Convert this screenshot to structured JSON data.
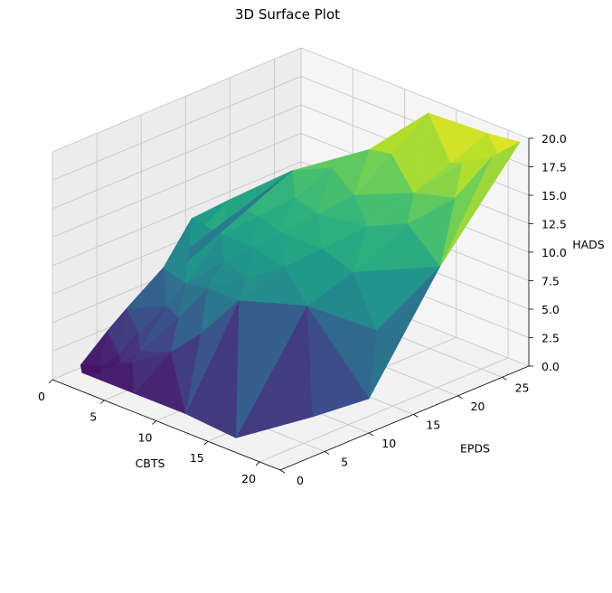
{
  "chart_data": {
    "type": "surface3d",
    "title": "3D Surface Plot",
    "xlabel": "CBTS",
    "ylabel": "EPDS",
    "zlabel": "HADS",
    "xlim": [
      0,
      22
    ],
    "ylim": [
      0,
      28
    ],
    "zlim": [
      0,
      20
    ],
    "x_ticks": [
      "0",
      "5",
      "10",
      "15",
      "20"
    ],
    "y_ticks": [
      "0",
      "5",
      "10",
      "15",
      "20",
      "25"
    ],
    "z_ticks": [
      "0.0",
      "2.5",
      "5.0",
      "7.5",
      "10.0",
      "12.5",
      "15.0",
      "17.5",
      "20.0"
    ],
    "colormap": "viridis",
    "grid": true,
    "points": [
      {
        "x": 1,
        "y": 2,
        "z": 1
      },
      {
        "x": 2,
        "y": 1,
        "z": 1
      },
      {
        "x": 3,
        "y": 2,
        "z": 1
      },
      {
        "x": 2,
        "y": 3,
        "z": 1
      },
      {
        "x": 4,
        "y": 3,
        "z": 2
      },
      {
        "x": 3,
        "y": 4,
        "z": 2
      },
      {
        "x": 1,
        "y": 5,
        "z": 3
      },
      {
        "x": 2,
        "y": 6,
        "z": 5
      },
      {
        "x": 4,
        "y": 5,
        "z": 4
      },
      {
        "x": 5,
        "y": 4,
        "z": 3
      },
      {
        "x": 6,
        "y": 2,
        "z": 3
      },
      {
        "x": 7,
        "y": 1,
        "z": 1
      },
      {
        "x": 8,
        "y": 4,
        "z": 4
      },
      {
        "x": 5,
        "y": 7,
        "z": 6
      },
      {
        "x": 3,
        "y": 9,
        "z": 8
      },
      {
        "x": 6,
        "y": 8,
        "z": 8
      },
      {
        "x": 4,
        "y": 11,
        "z": 12
      },
      {
        "x": 7,
        "y": 6,
        "z": 6
      },
      {
        "x": 9,
        "y": 7,
        "z": 9
      },
      {
        "x": 8,
        "y": 10,
        "z": 10
      },
      {
        "x": 6,
        "y": 12,
        "z": 11
      },
      {
        "x": 5,
        "y": 14,
        "z": 13
      },
      {
        "x": 10,
        "y": 5,
        "z": 6
      },
      {
        "x": 11,
        "y": 9,
        "z": 10
      },
      {
        "x": 9,
        "y": 12,
        "z": 11
      },
      {
        "x": 12,
        "y": 7,
        "z": 9
      },
      {
        "x": 7,
        "y": 15,
        "z": 12
      },
      {
        "x": 10,
        "y": 14,
        "z": 12
      },
      {
        "x": 13,
        "y": 11,
        "z": 11
      },
      {
        "x": 8,
        "y": 18,
        "z": 13
      },
      {
        "x": 11,
        "y": 17,
        "z": 13
      },
      {
        "x": 14,
        "y": 14,
        "z": 12
      },
      {
        "x": 6,
        "y": 20,
        "z": 14
      },
      {
        "x": 9,
        "y": 21,
        "z": 15
      },
      {
        "x": 12,
        "y": 20,
        "z": 14
      },
      {
        "x": 15,
        "y": 18,
        "z": 13
      },
      {
        "x": 16,
        "y": 10,
        "z": 9
      },
      {
        "x": 17,
        "y": 14,
        "z": 11
      },
      {
        "x": 10,
        "y": 24,
        "z": 16
      },
      {
        "x": 13,
        "y": 23,
        "z": 17
      },
      {
        "x": 16,
        "y": 22,
        "z": 15
      },
      {
        "x": 18,
        "y": 19,
        "z": 14
      },
      {
        "x": 14,
        "y": 26,
        "z": 20
      },
      {
        "x": 17,
        "y": 25,
        "z": 17
      },
      {
        "x": 19,
        "y": 24,
        "z": 18
      },
      {
        "x": 20,
        "y": 22,
        "z": 16
      },
      {
        "x": 21,
        "y": 25,
        "z": 19
      },
      {
        "x": 22,
        "y": 27,
        "z": 20
      },
      {
        "x": 20,
        "y": 27,
        "z": 18
      },
      {
        "x": 18,
        "y": 28,
        "z": 19
      },
      {
        "x": 22,
        "y": 18,
        "z": 12
      },
      {
        "x": 21,
        "y": 12,
        "z": 8
      },
      {
        "x": 22,
        "y": 10,
        "z": 3
      },
      {
        "x": 20,
        "y": 6,
        "z": 2
      },
      {
        "x": 16,
        "y": 2,
        "z": 0
      },
      {
        "x": 12,
        "y": 1,
        "z": 1
      }
    ]
  }
}
